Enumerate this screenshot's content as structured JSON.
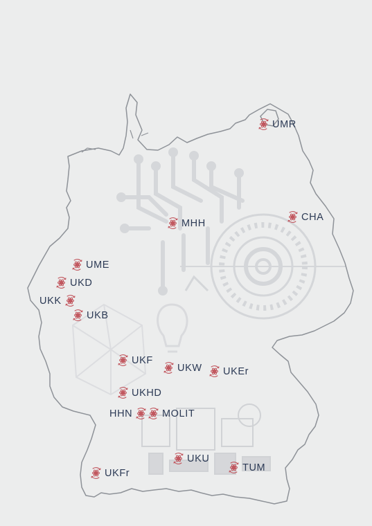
{
  "map": {
    "accent_color": "#c0525a",
    "label_color": "#2c3a55",
    "outline_color": "#8e9298",
    "site_icon": "recycle-atom-icon",
    "sites": [
      {
        "id": "umr",
        "label": "UMR"
      },
      {
        "id": "cha",
        "label": "CHA"
      },
      {
        "id": "mhh",
        "label": "MHH"
      },
      {
        "id": "ume",
        "label": "UME"
      },
      {
        "id": "ukd",
        "label": "UKD"
      },
      {
        "id": "ukk",
        "label": "UKK"
      },
      {
        "id": "ukb",
        "label": "UKB"
      },
      {
        "id": "ukf",
        "label": "UKF"
      },
      {
        "id": "ukw",
        "label": "UKW"
      },
      {
        "id": "uker",
        "label": "UKEr"
      },
      {
        "id": "ukhd",
        "label": "UKHD"
      },
      {
        "id": "hhn",
        "label": "HHN"
      },
      {
        "id": "molit",
        "label": "MOLIT"
      },
      {
        "id": "uku",
        "label": "UKU"
      },
      {
        "id": "tum",
        "label": "TUM"
      },
      {
        "id": "ukfr",
        "label": "UKFr"
      }
    ]
  }
}
